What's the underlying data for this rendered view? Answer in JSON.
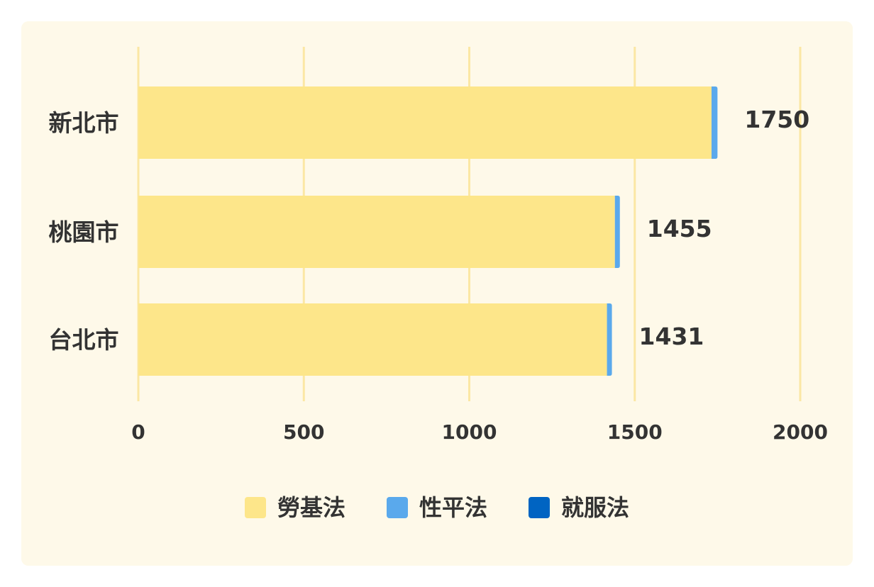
{
  "chart_data": {
    "type": "bar",
    "orientation": "horizontal",
    "stacked": true,
    "categories": [
      "新北市",
      "桃園市",
      "台北市"
    ],
    "series": [
      {
        "name": "勞基法",
        "color": "#fde68a",
        "values": [
          1732,
          1440,
          1416
        ]
      },
      {
        "name": "性平法",
        "color": "#5aa9ec",
        "values": [
          18,
          15,
          15
        ]
      },
      {
        "name": "就服法",
        "color": "#0064c2",
        "values": [
          0,
          0,
          0
        ]
      }
    ],
    "totals": [
      "1750",
      "1455",
      "1431"
    ],
    "x_ticks": [
      "0",
      "500",
      "1000",
      "1500",
      "2000"
    ],
    "xlim": [
      0,
      2000
    ],
    "grid": true,
    "legend_position": "bottom"
  }
}
